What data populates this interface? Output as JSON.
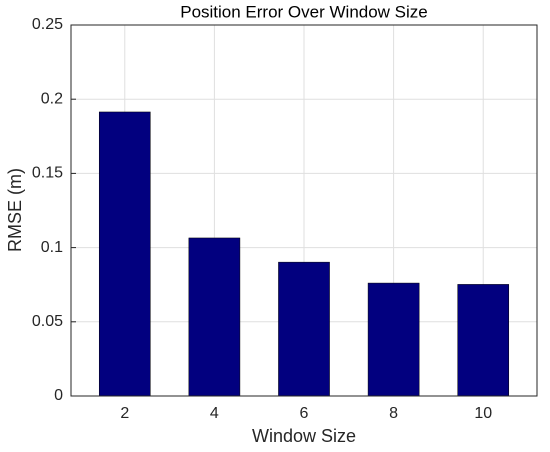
{
  "chart_data": {
    "type": "bar",
    "title": "Position Error Over Window Size",
    "x_label": "Window Size",
    "y_label": "RMSE (m)",
    "x": [
      2,
      4,
      6,
      8,
      10
    ],
    "values": [
      0.1914,
      0.1065,
      0.0902,
      0.0761,
      0.0752
    ],
    "color": "#02007f",
    "xlim": [
      0.8,
      11.2
    ],
    "xticks": [
      2,
      4,
      6,
      8,
      10
    ],
    "ylim": [
      0,
      0.25
    ],
    "yticks": [
      0,
      0.05,
      0.1,
      0.15,
      0.2,
      0.25
    ],
    "grid": true
  }
}
